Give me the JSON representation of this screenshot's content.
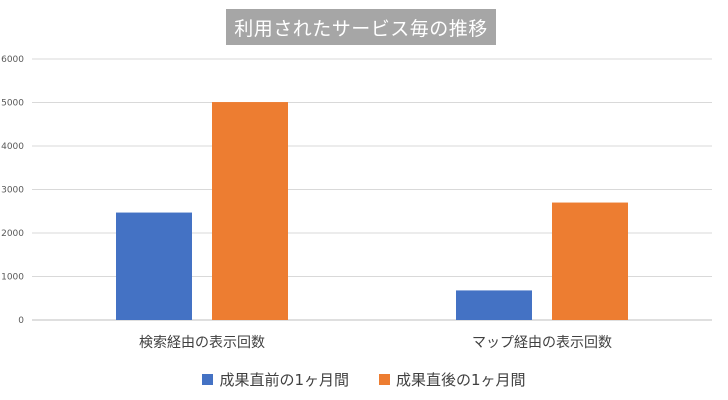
{
  "chart_data": {
    "type": "bar",
    "title": "利用されたサービス毎の推移",
    "categories": [
      "検索経由の表示回数",
      "マップ経由の表示回数"
    ],
    "series": [
      {
        "name": "成果直前の1ヶ月間",
        "color": "#4472c4",
        "values": [
          2470,
          680
        ]
      },
      {
        "name": "成果直後の1ヶ月間",
        "color": "#ed7d31",
        "values": [
          5010,
          2700
        ]
      }
    ],
    "ylim": [
      0,
      6000
    ],
    "yticks": [
      0,
      1000,
      2000,
      3000,
      4000,
      5000,
      6000
    ],
    "grid": true,
    "legend_position": "bottom"
  }
}
